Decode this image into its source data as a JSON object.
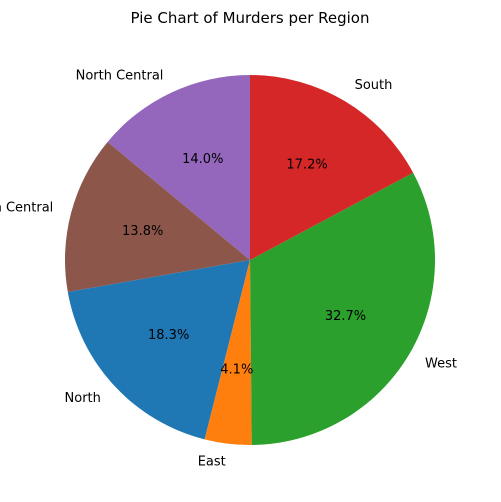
{
  "chart_data": {
    "type": "pie",
    "title": "Pie Chart of Murders per Region",
    "start_angle_deg": 90,
    "direction": "counterclockwise",
    "slices": [
      {
        "label": "North Central",
        "percent": 14.0,
        "pct_label": "14.0%",
        "color": "#9467bd"
      },
      {
        "label": "South Central",
        "percent": 13.8,
        "pct_label": "13.8%",
        "color": "#8c564b"
      },
      {
        "label": "North",
        "percent": 18.3,
        "pct_label": "18.3%",
        "color": "#1f77b4"
      },
      {
        "label": "East",
        "percent": 4.1,
        "pct_label": "4.1%",
        "color": "#ff7f0e"
      },
      {
        "label": "West",
        "percent": 32.7,
        "pct_label": "32.7%",
        "color": "#2ca02c"
      },
      {
        "label": "South",
        "percent": 17.2,
        "pct_label": "17.2%",
        "color": "#d62728"
      }
    ]
  }
}
